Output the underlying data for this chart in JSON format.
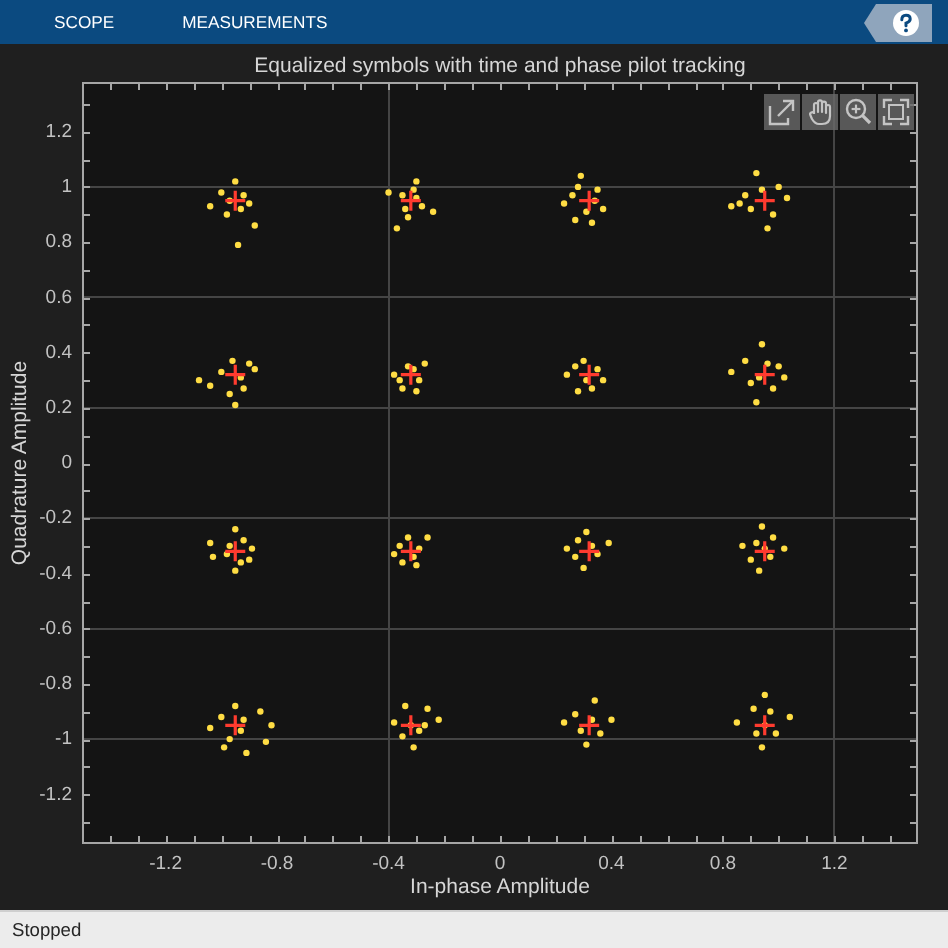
{
  "chart_data": {
    "type": "scatter",
    "title": "Equalized symbols with time and phase pilot tracking",
    "xlabel": "In-phase Amplitude",
    "ylabel": "Quadrature Amplitude",
    "annotations": [
      "SCOPE",
      "MEASUREMENTS",
      "Stopped"
    ],
    "series": [
      {
        "color": "#ffdd44",
        "marker": "circle",
        "x": [
          -1.04,
          -0.94,
          -0.88,
          -0.95,
          -1.0,
          -0.92,
          -0.98,
          -0.93,
          -0.97,
          -0.9,
          -0.37,
          -0.24,
          -0.3,
          -0.4,
          -0.34,
          -0.3,
          -0.35,
          -0.28,
          -0.33,
          -0.31,
          0.23,
          0.37,
          0.29,
          0.27,
          0.33,
          0.35,
          0.26,
          0.31,
          0.28,
          0.34,
          0.83,
          1.03,
          0.96,
          0.92,
          0.88,
          1.0,
          0.9,
          0.98,
          0.94,
          0.86,
          -1.08,
          -1.04,
          -0.88,
          -0.95,
          -0.96,
          -0.92,
          -1.0,
          -0.93,
          -0.97,
          -0.9,
          -0.38,
          -0.27,
          -0.3,
          -0.35,
          -0.33,
          -0.29,
          -0.36,
          -0.31,
          0.24,
          0.37,
          0.3,
          0.28,
          0.33,
          0.35,
          0.27,
          0.31,
          0.83,
          1.02,
          0.94,
          0.92,
          0.88,
          0.98,
          0.9,
          0.96,
          0.93,
          1.0,
          -1.04,
          -1.03,
          -0.95,
          -0.95,
          -0.89,
          -0.92,
          -0.98,
          -0.93,
          -0.97,
          -0.9,
          -0.38,
          -0.26,
          -0.3,
          -0.35,
          -0.33,
          -0.29,
          -0.36,
          -0.31,
          0.24,
          0.39,
          0.31,
          0.3,
          0.27,
          0.35,
          0.28,
          0.33,
          0.87,
          1.02,
          0.94,
          0.93,
          0.9,
          0.98,
          0.92,
          0.97,
          0.95,
          -1.04,
          -0.82,
          -0.84,
          -0.91,
          -0.86,
          -0.95,
          -1.0,
          -0.97,
          -0.93,
          -0.99,
          -0.92,
          -0.38,
          -0.22,
          -0.31,
          -0.34,
          -0.26,
          -0.29,
          -0.35,
          -0.32,
          -0.27,
          0.23,
          0.4,
          0.34,
          0.31,
          0.27,
          0.36,
          0.29,
          0.33,
          0.85,
          1.04,
          0.95,
          0.94,
          0.91,
          0.99,
          0.92,
          0.97,
          0.95
        ],
        "values": [
          0.93,
          0.79,
          0.86,
          1.02,
          0.98,
          0.97,
          0.9,
          0.92,
          0.95,
          0.94,
          0.85,
          0.91,
          1.02,
          0.98,
          0.92,
          0.96,
          0.97,
          0.93,
          0.89,
          0.99,
          0.94,
          0.92,
          1.04,
          0.88,
          0.87,
          0.99,
          0.97,
          0.91,
          1.0,
          0.95,
          0.93,
          0.96,
          0.85,
          1.05,
          0.97,
          1.0,
          0.92,
          0.9,
          0.99,
          0.94,
          0.3,
          0.28,
          0.34,
          0.21,
          0.37,
          0.27,
          0.33,
          0.31,
          0.25,
          0.36,
          0.32,
          0.36,
          0.26,
          0.27,
          0.35,
          0.3,
          0.3,
          0.34,
          0.32,
          0.3,
          0.37,
          0.26,
          0.27,
          0.34,
          0.35,
          0.3,
          0.33,
          0.31,
          0.43,
          0.22,
          0.37,
          0.27,
          0.29,
          0.36,
          0.31,
          0.35,
          -0.29,
          -0.34,
          -0.24,
          -0.39,
          -0.31,
          -0.28,
          -0.33,
          -0.36,
          -0.3,
          -0.35,
          -0.33,
          -0.27,
          -0.37,
          -0.36,
          -0.27,
          -0.31,
          -0.3,
          -0.34,
          -0.31,
          -0.29,
          -0.25,
          -0.38,
          -0.34,
          -0.33,
          -0.28,
          -0.3,
          -0.3,
          -0.31,
          -0.23,
          -0.39,
          -0.35,
          -0.27,
          -0.29,
          -0.34,
          -0.31,
          -0.96,
          -0.95,
          -1.01,
          -1.05,
          -0.9,
          -0.88,
          -0.92,
          -1.0,
          -0.97,
          -1.03,
          -0.93,
          -0.94,
          -0.93,
          -1.03,
          -0.88,
          -0.89,
          -0.97,
          -0.99,
          -0.95,
          -0.95,
          -0.94,
          -0.93,
          -0.86,
          -1.02,
          -0.91,
          -0.98,
          -0.97,
          -0.93,
          -0.94,
          -0.92,
          -0.84,
          -1.03,
          -0.89,
          -0.98,
          -0.98,
          -0.9,
          -0.95
        ]
      },
      {
        "color": "#ff3b2f",
        "marker": "cross",
        "x": [
          -0.95,
          -0.32,
          0.32,
          0.95,
          -0.95,
          -0.32,
          0.32,
          0.95,
          -0.95,
          -0.32,
          0.32,
          0.95,
          -0.95,
          -0.32,
          0.32,
          0.95
        ],
        "values": [
          0.95,
          0.95,
          0.95,
          0.95,
          0.32,
          0.32,
          0.32,
          0.32,
          -0.32,
          -0.32,
          -0.32,
          -0.32,
          -0.95,
          -0.95,
          -0.95,
          -0.95
        ]
      }
    ],
    "xlim": [
      -1.5,
      1.5
    ],
    "ylim": [
      -1.38,
      1.38
    ],
    "xticks": [
      {
        "value": -1.4,
        "label": null
      },
      {
        "value": -1.3,
        "label": null
      },
      -1.2,
      {
        "value": -1.1,
        "label": null
      },
      {
        "value": -1,
        "label": null
      },
      {
        "value": -0.9,
        "label": null
      },
      -0.8,
      {
        "value": -0.7,
        "label": null
      },
      {
        "value": -0.6,
        "label": null
      },
      {
        "value": -0.5,
        "label": null
      },
      -0.4,
      {
        "value": -0.3,
        "label": null
      },
      {
        "value": -0.2,
        "label": null
      },
      {
        "value": -0.1,
        "label": null
      },
      0,
      {
        "value": 0.1,
        "label": null
      },
      {
        "value": 0.2,
        "label": null
      },
      {
        "value": 0.3,
        "label": null
      },
      0.4,
      {
        "value": 0.5,
        "label": null
      },
      {
        "value": 0.6,
        "label": null
      },
      {
        "value": 0.7,
        "label": null
      },
      0.8,
      {
        "value": 0.9,
        "label": null
      },
      {
        "value": 1,
        "label": null
      },
      {
        "value": 1.1,
        "label": null
      },
      1.2,
      {
        "value": 1.3,
        "label": null
      },
      {
        "value": 1.4,
        "label": null
      }
    ],
    "yticks": [
      {
        "value": -1.3,
        "label": null
      },
      -1.2,
      {
        "value": -1.1,
        "label": null
      },
      -1,
      {
        "value": -0.9,
        "label": null
      },
      -0.8,
      {
        "value": -0.7,
        "label": null
      },
      -0.6,
      {
        "value": -0.5,
        "label": null
      },
      -0.4,
      {
        "value": -0.3,
        "label": null
      },
      -0.2,
      {
        "value": -0.1,
        "label": null
      },
      0,
      {
        "value": 0.1,
        "label": null
      },
      0.2,
      {
        "value": 0.3,
        "label": null
      },
      0.4,
      {
        "value": 0.5,
        "label": null
      },
      0.6,
      {
        "value": 0.7,
        "label": null
      },
      0.8,
      {
        "value": 0.9,
        "label": null
      },
      1,
      {
        "value": 1.1,
        "label": null
      },
      1.2,
      {
        "value": 1.3,
        "label": null
      }
    ],
    "grid": true
  }
}
